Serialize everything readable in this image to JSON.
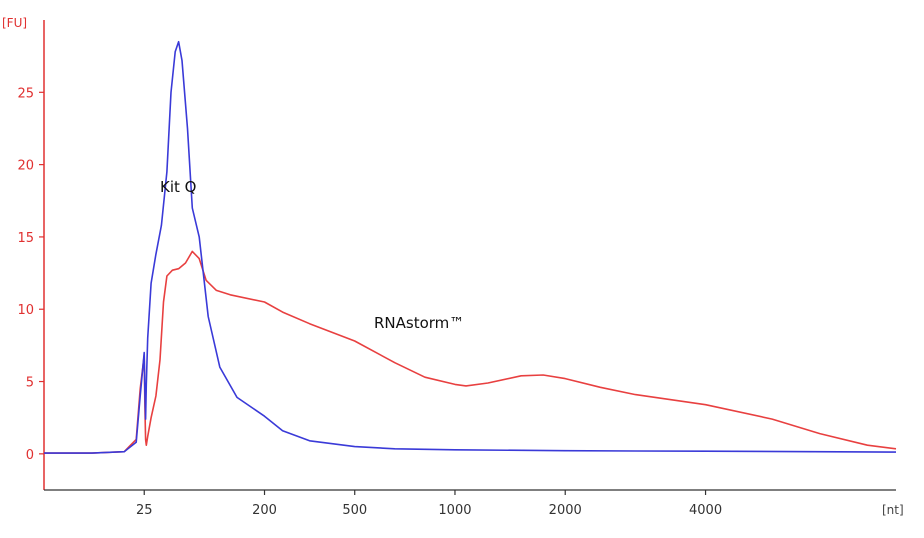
{
  "chart_data": {
    "type": "line",
    "y_unit": "[FU]",
    "x_unit": "[nt]",
    "ylim": [
      -2.5,
      30
    ],
    "y_ticks": [
      0,
      5,
      10,
      15,
      20,
      25
    ],
    "x_ticks": [
      "25",
      "200",
      "500",
      "1000",
      "2000",
      "4000"
    ],
    "grid": false,
    "axis_color": "#e03030",
    "x_tick_positions": [
      25,
      200,
      500,
      1000,
      2000,
      4000
    ],
    "x_scale": [
      [
        0,
        0
      ],
      [
        25,
        1.0
      ],
      [
        200,
        2.2
      ],
      [
        500,
        3.1
      ],
      [
        1000,
        4.1
      ],
      [
        2000,
        5.2
      ],
      [
        4000,
        6.6
      ],
      [
        6000,
        8.5
      ]
    ],
    "series": [
      {
        "name": "Kit Q",
        "color": "#3a3ad8",
        "points": [
          [
            0,
            0.05
          ],
          [
            12,
            0.05
          ],
          [
            20,
            0.15
          ],
          [
            23,
            0.8
          ],
          [
            24,
            4.0
          ],
          [
            25,
            7.0
          ],
          [
            26,
            4.2
          ],
          [
            27,
            2.4
          ],
          [
            28,
            4.8
          ],
          [
            30,
            8.0
          ],
          [
            35,
            11.8
          ],
          [
            42,
            13.8
          ],
          [
            50,
            15.8
          ],
          [
            58,
            19.5
          ],
          [
            64,
            25.0
          ],
          [
            70,
            27.8
          ],
          [
            75,
            28.5
          ],
          [
            80,
            27.2
          ],
          [
            88,
            22.5
          ],
          [
            95,
            17.0
          ],
          [
            105,
            15.0
          ],
          [
            118,
            9.5
          ],
          [
            135,
            6.0
          ],
          [
            160,
            3.9
          ],
          [
            200,
            2.6
          ],
          [
            260,
            1.6
          ],
          [
            350,
            0.9
          ],
          [
            500,
            0.5
          ],
          [
            700,
            0.35
          ],
          [
            1000,
            0.28
          ],
          [
            2000,
            0.22
          ],
          [
            3000,
            0.2
          ],
          [
            4000,
            0.18
          ],
          [
            6000,
            0.12
          ]
        ]
      },
      {
        "name": "RNAstorm™",
        "color": "#e84040",
        "points": [
          [
            0,
            0.05
          ],
          [
            12,
            0.05
          ],
          [
            20,
            0.15
          ],
          [
            23,
            1.0
          ],
          [
            24,
            4.5
          ],
          [
            25,
            6.8
          ],
          [
            26,
            3.2
          ],
          [
            27,
            1.0
          ],
          [
            28,
            0.6
          ],
          [
            30,
            1.2
          ],
          [
            35,
            2.5
          ],
          [
            42,
            4.0
          ],
          [
            48,
            6.5
          ],
          [
            53,
            10.5
          ],
          [
            58,
            12.3
          ],
          [
            66,
            12.7
          ],
          [
            75,
            12.8
          ],
          [
            85,
            13.2
          ],
          [
            95,
            14.0
          ],
          [
            105,
            13.5
          ],
          [
            115,
            12.0
          ],
          [
            130,
            11.3
          ],
          [
            150,
            11.0
          ],
          [
            200,
            10.5
          ],
          [
            260,
            9.8
          ],
          [
            350,
            9.0
          ],
          [
            500,
            7.8
          ],
          [
            700,
            6.3
          ],
          [
            850,
            5.3
          ],
          [
            1000,
            4.8
          ],
          [
            1100,
            4.7
          ],
          [
            1300,
            4.9
          ],
          [
            1600,
            5.4
          ],
          [
            1800,
            5.45
          ],
          [
            2000,
            5.2
          ],
          [
            2500,
            4.6
          ],
          [
            3000,
            4.1
          ],
          [
            4000,
            3.4
          ],
          [
            4700,
            2.4
          ],
          [
            5200,
            1.4
          ],
          [
            5700,
            0.6
          ],
          [
            6000,
            0.35
          ]
        ]
      }
    ]
  }
}
